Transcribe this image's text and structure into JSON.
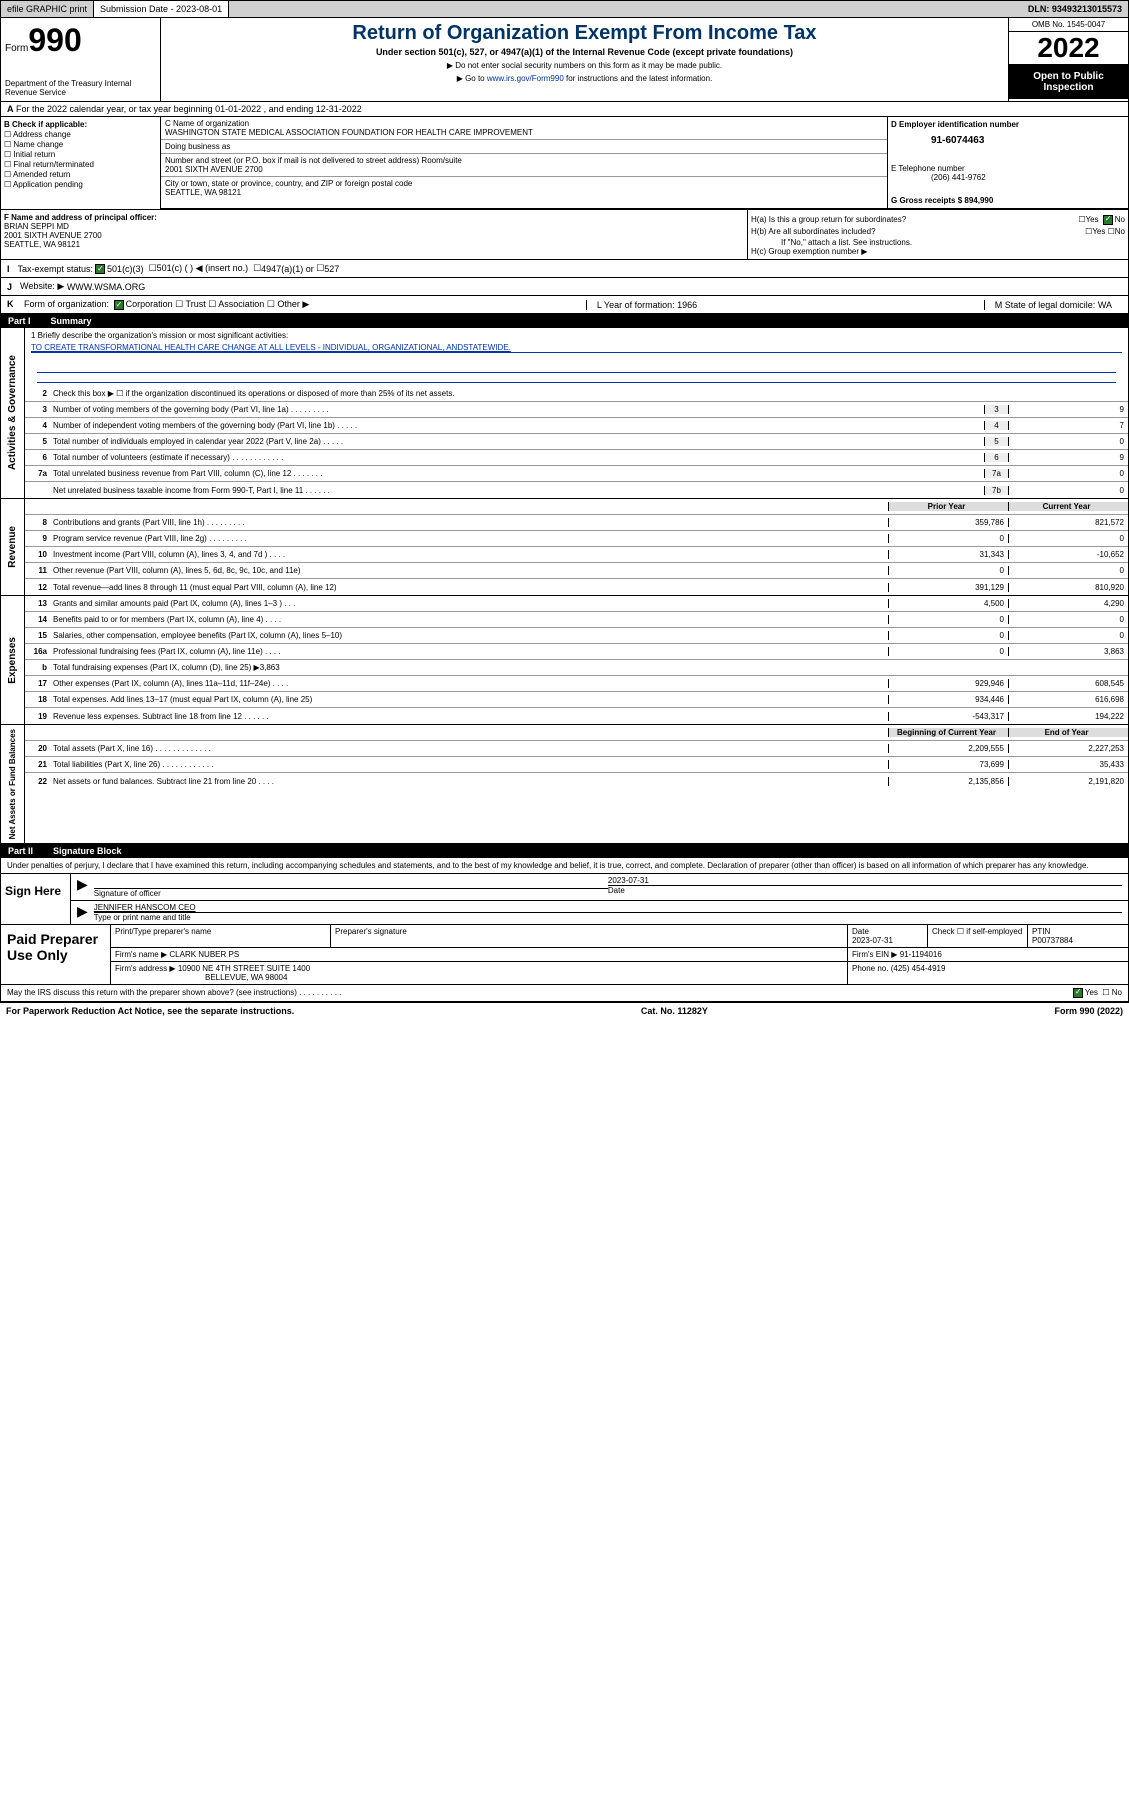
{
  "topbar": {
    "efile": "efile GRAPHIC print",
    "sub_label": "Submission Date - 2023-08-01",
    "dln": "DLN: 93493213015573"
  },
  "header": {
    "form": "Form",
    "form_no": "990",
    "dept": "Department of the Treasury Internal Revenue Service",
    "title": "Return of Organization Exempt From Income Tax",
    "sub": "Under section 501(c), 527, or 4947(a)(1) of the Internal Revenue Code (except private foundations)",
    "note1": "▶ Do not enter social security numbers on this form as it may be made public.",
    "note2": "▶ Go to www.irs.gov/Form990 for instructions and the latest information.",
    "link": "www.irs.gov/Form990",
    "omb": "OMB No. 1545-0047",
    "year": "2022",
    "open": "Open to Public Inspection"
  },
  "row_a": "For the 2022 calendar year, or tax year beginning 01-01-2022 , and ending 12-31-2022",
  "b": {
    "heading": "B Check if applicable:",
    "items": [
      "Address change",
      "Name change",
      "Initial return",
      "Final return/terminated",
      "Amended return",
      "Application pending"
    ]
  },
  "c": {
    "name_lbl": "C Name of organization",
    "name": "WASHINGTON STATE MEDICAL ASSOCIATION FOUNDATION FOR HEALTH CARE IMPROVEMENT",
    "dba_lbl": "Doing business as",
    "dba": "",
    "addr_lbl": "Number and street (or P.O. box if mail is not delivered to street address)     Room/suite",
    "addr": "2001 SIXTH AVENUE 2700",
    "city_lbl": "City or town, state or province, country, and ZIP or foreign postal code",
    "city": "SEATTLE, WA  98121"
  },
  "d": {
    "ein_lbl": "D Employer identification number",
    "ein": "91-6074463",
    "tel_lbl": "E Telephone number",
    "tel": "(206) 441-9762",
    "gross_lbl": "G Gross receipts $",
    "gross": "894,990"
  },
  "f": {
    "lbl": "F Name and address of principal officer:",
    "name": "BRIAN SEPPI MD",
    "addr": "2001 SIXTH AVENUE 2700",
    "city": "SEATTLE, WA  98121"
  },
  "h": {
    "a": "H(a)  Is this a group return for subordinates?",
    "a_ans": "No",
    "b": "H(b)  Are all subordinates included?",
    "b_note": "If \"No,\" attach a list. See instructions.",
    "c": "H(c)  Group exemption number ▶"
  },
  "i": {
    "lbl": "I",
    "txt": "Tax-exempt status:",
    "opts": [
      "501(c)(3)",
      "501(c) (  ) ◀ (insert no.)",
      "4947(a)(1) or",
      "527"
    ]
  },
  "j": {
    "lbl": "J",
    "txt": "Website: ▶",
    "val": "WWW.WSMA.ORG"
  },
  "k": {
    "lbl": "K",
    "txt": "Form of organization:",
    "opts": [
      "Corporation",
      "Trust",
      "Association",
      "Other ▶"
    ]
  },
  "l": {
    "txt": "L Year of formation: 1966"
  },
  "m": {
    "txt": "M State of legal domicile: WA"
  },
  "part1": {
    "num": "Part I",
    "title": "Summary"
  },
  "mission": {
    "lbl": "1  Briefly describe the organization's mission or most significant activities:",
    "txt": "TO CREATE TRANSFORMATIONAL HEALTH CARE CHANGE AT ALL LEVELS - INDIVIDUAL, ORGANIZATIONAL, ANDSTATEWIDE."
  },
  "gov": {
    "section": "Activities & Governance",
    "l2": "Check this box ▶ ☐  if the organization discontinued its operations or disposed of more than 25% of its net assets.",
    "lines": [
      {
        "n": "3",
        "t": "Number of voting members of the governing body (Part VI, line 1a)  .   .   .   .   .   .   .   .   .",
        "b": "3",
        "v": "9"
      },
      {
        "n": "4",
        "t": "Number of independent voting members of the governing body (Part VI, line 1b)  .   .   .   .   .",
        "b": "4",
        "v": "7"
      },
      {
        "n": "5",
        "t": "Total number of individuals employed in calendar year 2022 (Part V, line 2a)  .   .   .   .   .",
        "b": "5",
        "v": "0"
      },
      {
        "n": "6",
        "t": "Total number of volunteers (estimate if necessary)  .   .   .   .   .   .   .   .   .   .   .   .",
        "b": "6",
        "v": "9"
      },
      {
        "n": "7a",
        "t": "Total unrelated business revenue from Part VIII, column (C), line 12  .   .   .   .   .   .   .",
        "b": "7a",
        "v": "0"
      },
      {
        "n": "",
        "t": "Net unrelated business taxable income from Form 990-T, Part I, line 11  .   .   .   .   .   .",
        "b": "7b",
        "v": "0"
      }
    ]
  },
  "rev": {
    "section": "Revenue",
    "hdr_prior": "Prior Year",
    "hdr_curr": "Current Year",
    "lines": [
      {
        "n": "8",
        "t": "Contributions and grants (Part VIII, line 1h)  .   .   .   .   .   .   .   .   .",
        "p": "359,786",
        "c": "821,572"
      },
      {
        "n": "9",
        "t": "Program service revenue (Part VIII, line 2g)  .   .   .   .   .   .   .   .   .",
        "p": "0",
        "c": "0"
      },
      {
        "n": "10",
        "t": "Investment income (Part VIII, column (A), lines 3, 4, and 7d )  .   .   .   .",
        "p": "31,343",
        "c": "-10,652"
      },
      {
        "n": "11",
        "t": "Other revenue (Part VIII, column (A), lines 5, 6d, 8c, 9c, 10c, and 11e)",
        "p": "0",
        "c": "0"
      },
      {
        "n": "12",
        "t": "Total revenue—add lines 8 through 11 (must equal Part VIII, column (A), line 12)",
        "p": "391,129",
        "c": "810,920"
      }
    ]
  },
  "exp": {
    "section": "Expenses",
    "lines": [
      {
        "n": "13",
        "t": "Grants and similar amounts paid (Part IX, column (A), lines 1–3 )  .   .   .",
        "p": "4,500",
        "c": "4,290"
      },
      {
        "n": "14",
        "t": "Benefits paid to or for members (Part IX, column (A), line 4)  .   .   .   .",
        "p": "0",
        "c": "0"
      },
      {
        "n": "15",
        "t": "Salaries, other compensation, employee benefits (Part IX, column (A), lines 5–10)",
        "p": "0",
        "c": "0"
      },
      {
        "n": "16a",
        "t": "Professional fundraising fees (Part IX, column (A), line 11e)  .   .   .   .",
        "p": "0",
        "c": "3,863"
      },
      {
        "n": "b",
        "t": "Total fundraising expenses (Part IX, column (D), line 25) ▶3,863",
        "p": "",
        "c": ""
      },
      {
        "n": "17",
        "t": "Other expenses (Part IX, column (A), lines 11a–11d, 11f–24e)  .   .   .   .",
        "p": "929,946",
        "c": "608,545"
      },
      {
        "n": "18",
        "t": "Total expenses. Add lines 13–17 (must equal Part IX, column (A), line 25)",
        "p": "934,446",
        "c": "616,698"
      },
      {
        "n": "19",
        "t": "Revenue less expenses. Subtract line 18 from line 12  .   .   .   .   .   .",
        "p": "-543,317",
        "c": "194,222"
      }
    ]
  },
  "net": {
    "section": "Net Assets or Fund Balances",
    "hdr_beg": "Beginning of Current Year",
    "hdr_end": "End of Year",
    "lines": [
      {
        "n": "20",
        "t": "Total assets (Part X, line 16)  .   .   .   .   .   .   .   .   .   .   .   .   .",
        "p": "2,209,555",
        "c": "2,227,253"
      },
      {
        "n": "21",
        "t": "Total liabilities (Part X, line 26)  .   .   .   .   .   .   .   .   .   .   .   .",
        "p": "73,699",
        "c": "35,433"
      },
      {
        "n": "22",
        "t": "Net assets or fund balances. Subtract line 21 from line 20  .   .   .   .",
        "p": "2,135,856",
        "c": "2,191,820"
      }
    ]
  },
  "part2": {
    "num": "Part II",
    "title": "Signature Block"
  },
  "sig": {
    "intro": "Under penalties of perjury, I declare that I have examined this return, including accompanying schedules and statements, and to the best of my knowledge and belief, it is true, correct, and complete. Declaration of preparer (other than officer) is based on all information of which preparer has any knowledge.",
    "here": "Sign Here",
    "officer_lbl": "Signature of officer",
    "date_lbl": "Date",
    "date": "2023-07-31",
    "name": "JENNIFER HANSCOM CEO",
    "name_lbl": "Type or print name and title"
  },
  "prep": {
    "lbl": "Paid Preparer Use Only",
    "h1": "Print/Type preparer's name",
    "h2": "Preparer's signature",
    "h3": "Date",
    "h3v": "2023-07-31",
    "h4": "Check ☐ if self-employed",
    "h5": "PTIN",
    "h5v": "P00737884",
    "firm_lbl": "Firm's name    ▶",
    "firm": "CLARK NUBER PS",
    "ein_lbl": "Firm's EIN ▶",
    "ein": "91-1194016",
    "addr_lbl": "Firm's address ▶",
    "addr": "10900 NE 4TH STREET SUITE 1400",
    "city": "BELLEVUE, WA  98004",
    "phone_lbl": "Phone no.",
    "phone": "(425) 454-4919"
  },
  "may": "May the IRS discuss this return with the preparer shown above? (see instructions)  .   .   .   .   .   .   .   .   .   .",
  "footer": {
    "pra": "For Paperwork Reduction Act Notice, see the separate instructions.",
    "cat": "Cat. No. 11282Y",
    "form": "Form 990 (2022)"
  },
  "colors": {
    "header_blue": "#003366",
    "link_blue": "#0033aa",
    "check_green": "#2a7a2a",
    "grey_bg": "#d0d0d0"
  }
}
